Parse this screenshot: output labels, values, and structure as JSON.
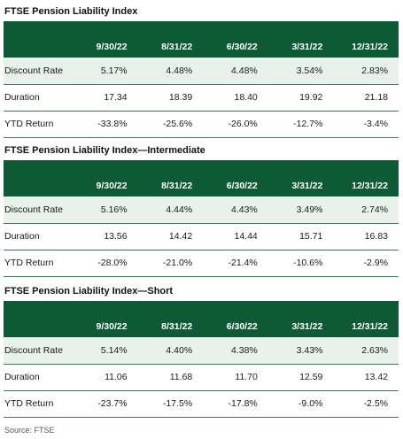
{
  "tables": [
    {
      "title": "FTSE Pension Liability Index",
      "headers": [
        "",
        "9/30/22",
        "8/31/22",
        "6/30/22",
        "3/31/22",
        "12/31/22"
      ],
      "rows": [
        {
          "label": "Discount Rate",
          "values": [
            "5.17%",
            "4.48%",
            "4.48%",
            "3.54%",
            "2.83%"
          ]
        },
        {
          "label": "Duration",
          "values": [
            "17.34",
            "18.39",
            "18.40",
            "19.92",
            "21.18"
          ]
        },
        {
          "label": "YTD Return",
          "values": [
            "-33.8%",
            "-25.6%",
            "-26.0%",
            "-12.7%",
            "-3.4%"
          ]
        }
      ]
    },
    {
      "title": "FTSE Pension Liability Index—Intermediate",
      "headers": [
        "",
        "9/30/22",
        "8/31/22",
        "6/30/22",
        "3/31/22",
        "12/31/22"
      ],
      "rows": [
        {
          "label": "Discount Rate",
          "values": [
            "5.16%",
            "4.44%",
            "4.43%",
            "3.49%",
            "2.74%"
          ]
        },
        {
          "label": "Duration",
          "values": [
            "13.56",
            "14.42",
            "14.44",
            "15.71",
            "16.83"
          ]
        },
        {
          "label": "YTD Return",
          "values": [
            "-28.0%",
            "-21.0%",
            "-21.4%",
            "-10.6%",
            "-2.9%"
          ]
        }
      ]
    },
    {
      "title": "FTSE Pension Liability Index—Short",
      "headers": [
        "",
        "9/30/22",
        "8/31/22",
        "6/30/22",
        "3/31/22",
        "12/31/22"
      ],
      "rows": [
        {
          "label": "Discount Rate",
          "values": [
            "5.14%",
            "4.40%",
            "4.38%",
            "3.43%",
            "2.63%"
          ]
        },
        {
          "label": "Duration",
          "values": [
            "11.06",
            "11.68",
            "11.70",
            "12.59",
            "13.42"
          ]
        },
        {
          "label": "YTD Return",
          "values": [
            "-23.7%",
            "-17.5%",
            "-17.8%",
            "-9.0%",
            "-2.5%"
          ]
        }
      ]
    }
  ],
  "source": "Source: FTSE",
  "colors": {
    "header_bg": "#0f5a36",
    "row_highlight": "#e8f1ea",
    "rule": "#3c7d57"
  }
}
